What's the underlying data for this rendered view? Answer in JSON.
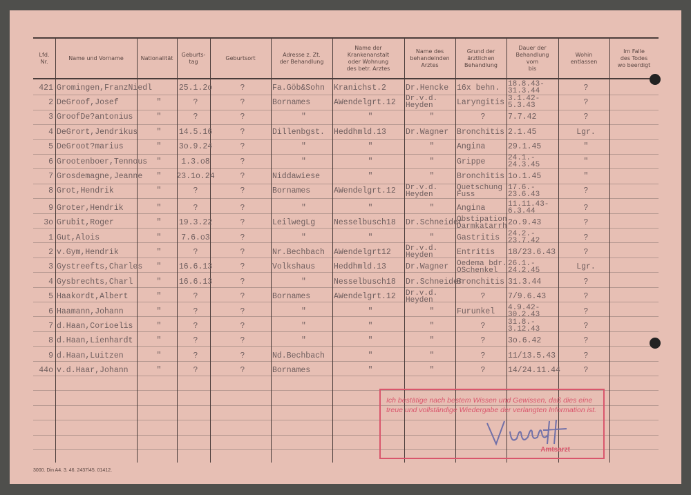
{
  "form": {
    "headers": [
      "Lfd.\nNr.",
      "Name und Vorname",
      "Nationalität",
      "Geburts-\ntag",
      "Geburtsort",
      "Adresse z. Zt.\nder Behandlung",
      "Name der\nKrankenanstalt\noder Wohnung\ndes betr. Arztes",
      "Name des\nbehandelnden\nArztes",
      "Grund der\närztlichen\nBehandlung",
      "Dauer der\nBehandlung\nvom\nbis",
      "Wohin\nentlassen",
      "Im Falle\ndes Todes\nwo beerdigt"
    ],
    "rows": [
      [
        "421",
        "Gromingen,FranzNiedl",
        "",
        "25.1.2o",
        "?",
        "Fa.Göb&Sohn",
        "Kranichst.2",
        "Dr.Hencke",
        "16x behn.",
        "18.8.43-\n31.3.44",
        "?",
        ""
      ],
      [
        "2",
        "DeGroof,Josef",
        "\"",
        "?",
        "?",
        "Bornames",
        "AWendelgrt.12",
        "Dr.v.d.\nHeyden",
        "Laryngitis",
        "3.1.42-\n5.3.43",
        "?",
        ""
      ],
      [
        "3",
        "GroofDe?antonius",
        "\"",
        "?",
        "?",
        "\"",
        "\"",
        "\"",
        "?",
        "7.7.42",
        "?",
        ""
      ],
      [
        "4",
        "DeGrort,Jendrikus",
        "\"",
        "14.5.16",
        "?",
        "Dillenbgst.",
        "Heddhmld.13",
        "Dr.Wagner",
        "Bronchitis",
        "2.1.45",
        "Lgr.",
        ""
      ],
      [
        "5",
        "DeGroot?marius",
        "\"",
        "3o.9.24",
        "?",
        "\"",
        "\"",
        "\"",
        "Angina",
        "29.1.45",
        "\"",
        ""
      ],
      [
        "6",
        "Grootenboer,Tennous",
        "\"",
        "1.3.o8",
        "?",
        "\"",
        "\"",
        "\"",
        "Grippe",
        "24.1.-\n24.3.45",
        "\"",
        ""
      ],
      [
        "7",
        "Grosdemagne,Jeanne",
        "\"",
        "23.1o.24",
        "?",
        "Niddawiese",
        "\"",
        "\"",
        "Bronchitis",
        "1o.1.45",
        "\"",
        ""
      ],
      [
        "8",
        "Grot,Hendrik",
        "\"",
        "?",
        "?",
        "Bornames",
        "AWendelgrt.12",
        "Dr.v.d.\nHeyden",
        "Quetschung\nFuss",
        "17.6.-\n23.6.43",
        "?",
        ""
      ],
      [
        "9",
        "Groter,Hendrik",
        "\"",
        "?",
        "?",
        "\"",
        "\"",
        "\"",
        "Angina",
        "11.11.43-\n6.3.44",
        "?",
        ""
      ],
      [
        "3o",
        "Grubit,Roger",
        "\"",
        "19.3.22",
        "?",
        "LeilwegLg",
        "Nesselbusch18",
        "Dr.Schneider",
        "Obstipation\nDarmkatarrh",
        "2o.9.43",
        "?",
        ""
      ],
      [
        "1",
        "Gut,Alois",
        "\"",
        "7.6.o3",
        "?",
        "\"",
        "\"",
        "\"",
        "Gastritis",
        "24.2.-\n23.7.42",
        "?",
        ""
      ],
      [
        "2",
        "v.Gym,Hendrik",
        "\"",
        "?",
        "?",
        "Nr.Bechbach",
        "AWendelgrt12",
        "Dr.v.d.\nHeyden",
        "Entritis",
        "18/23.6.43",
        "?",
        ""
      ],
      [
        "3",
        "Gystreefts,Charles",
        "\"",
        "16.6.13",
        "?",
        "Volkshaus",
        "Heddhmld.13",
        "Dr.Wagner",
        "Oedema bdr.\nOSchenkel",
        "26.1.-\n24.2.45",
        "Lgr.",
        ""
      ],
      [
        "4",
        "Gysbrechts,Charl",
        "\"",
        "16.6.13",
        "?",
        "\"",
        "Nesselbusch18",
        "Dr.Schneider",
        "Bronchitis",
        "31.3.44",
        "?",
        ""
      ],
      [
        "5",
        "Haakordt,Albert",
        "\"",
        "?",
        "?",
        "Bornames",
        "AWendelgrt.12",
        "Dr.v.d.\nHeyden",
        "?",
        "7/9.6.43",
        "?",
        ""
      ],
      [
        "6",
        "Haamann,Johann",
        "\"",
        "?",
        "?",
        "\"",
        "\"",
        "\"",
        "Furunkel",
        "4.9.42-\n30.2.43",
        "?",
        ""
      ],
      [
        "7",
        "d.Haan,Corioelis",
        "\"",
        "?",
        "?",
        "\"",
        "\"",
        "\"",
        "?",
        "31.8.-\n3.12.43",
        "?",
        ""
      ],
      [
        "8",
        "d.Haan,Lienhardt",
        "\"",
        "?",
        "?",
        "\"",
        "\"",
        "\"",
        "?",
        "3o.6.42",
        "?",
        ""
      ],
      [
        "9",
        "d.Haan,Luitzen",
        "\"",
        "?",
        "?",
        "Nd.Bechbach",
        "\"",
        "\"",
        "?",
        "11/13.5.43",
        "?",
        ""
      ],
      [
        "44o",
        "v.d.Haar,Johann",
        "\"",
        "?",
        "?",
        "Bornames",
        "\"",
        "\"",
        "?",
        "14/24.11.44",
        "?",
        ""
      ]
    ],
    "footer": "3000. Din A4. 3. 46. 2437/45. 01412."
  },
  "stamp": {
    "text": "Ich bestätige nach bestem Wissen und Gewissen, daß dies eine treue und vollständige Wiedergabe der verlangten Information ist.",
    "title": "Amtsarzt",
    "signature": "Vlumtt",
    "color": "#d9566c"
  },
  "colors": {
    "paper": "#e7bfb4",
    "ink": "#6f5e5e",
    "signature": "#7070a8"
  }
}
